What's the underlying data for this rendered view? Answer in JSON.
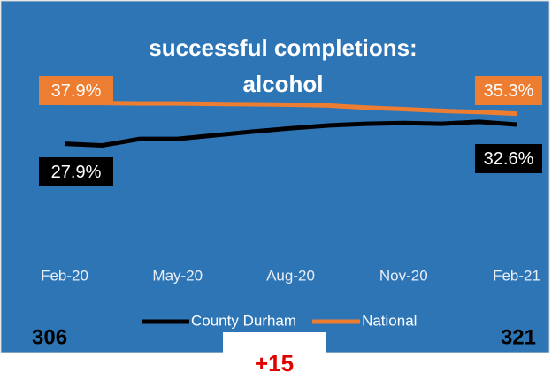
{
  "chart_data": {
    "type": "line",
    "title": [
      "successful completions:",
      "alcohol"
    ],
    "categories": [
      "Feb-20",
      null,
      null,
      "May-20",
      null,
      null,
      "Aug-20",
      null,
      null,
      "Nov-20",
      null,
      null,
      "Feb-21"
    ],
    "ylim": [
      0,
      40
    ],
    "series": [
      {
        "name": "County Durham",
        "color": "#000000",
        "values": [
          27.9,
          27.5,
          29.1,
          29.1,
          30.0,
          30.9,
          31.7,
          32.4,
          32.8,
          33.0,
          32.8,
          33.3,
          32.6
        ],
        "value_labels": [
          "27.9%",
          null,
          null,
          null,
          null,
          null,
          null,
          null,
          null,
          null,
          null,
          null,
          "32.6%"
        ]
      },
      {
        "name": "National",
        "color": "#ed7d31",
        "values": [
          37.9,
          37.9,
          37.8,
          37.8,
          37.7,
          37.6,
          37.5,
          37.3,
          36.8,
          36.4,
          36.0,
          35.7,
          35.3
        ],
        "value_labels": [
          "37.9%",
          null,
          null,
          null,
          null,
          null,
          null,
          null,
          null,
          null,
          null,
          null,
          "35.3%"
        ]
      }
    ],
    "legend": "bottom",
    "annotations": {
      "start": "306",
      "end": "321",
      "change": "+15"
    }
  }
}
